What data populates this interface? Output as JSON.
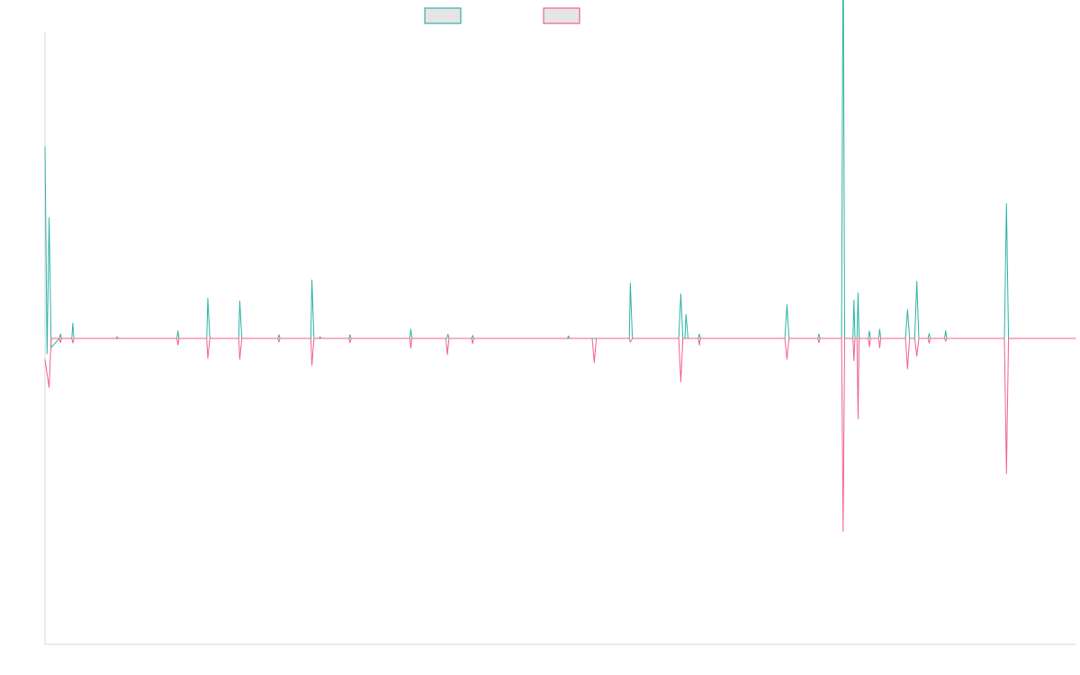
{
  "chart_data": {
    "type": "line",
    "grid": false,
    "legend_placement": "top-center",
    "x_range": [
      0,
      1000
    ],
    "y_range": [
      -100,
      100
    ],
    "series": [
      {
        "color": "#2bb3a5",
        "legend_fill": "#e5e5e5",
        "points": [
          [
            0.0,
            62.5
          ],
          [
            2.0,
            -5.0
          ],
          [
            4.0,
            39.4
          ],
          [
            6.0,
            -3.0
          ],
          [
            14.0,
            0.0
          ],
          [
            15.0,
            1.4
          ],
          [
            16.0,
            0.0
          ],
          [
            26.0,
            0.0
          ],
          [
            27.0,
            5.0
          ],
          [
            28.0,
            0.0
          ],
          [
            69.0,
            0.0
          ],
          [
            70.0,
            0.5
          ],
          [
            71.0,
            0.0
          ],
          [
            128.0,
            0.0
          ],
          [
            129.0,
            2.4
          ],
          [
            130.0,
            0.0
          ],
          [
            157.0,
            0.0
          ],
          [
            158.0,
            13.1
          ],
          [
            160.0,
            0.0
          ],
          [
            188.0,
            0.0
          ],
          [
            189.0,
            12.2
          ],
          [
            191.0,
            0.0
          ],
          [
            226.0,
            0.0
          ],
          [
            227.0,
            1.2
          ],
          [
            228.0,
            0.0
          ],
          [
            258.0,
            0.0
          ],
          [
            259.0,
            19.1
          ],
          [
            261.0,
            0.0
          ],
          [
            266.0,
            0.0
          ],
          [
            267.0,
            0.5
          ],
          [
            268.0,
            0.0
          ],
          [
            295.0,
            0.0
          ],
          [
            296.0,
            1.2
          ],
          [
            297.0,
            0.0
          ],
          [
            354.0,
            0.0
          ],
          [
            355.0,
            3.0
          ],
          [
            356.0,
            0.0
          ],
          [
            390.0,
            0.0
          ],
          [
            391.0,
            1.4
          ],
          [
            392.0,
            0.0
          ],
          [
            414.0,
            0.0
          ],
          [
            415.0,
            1.0
          ],
          [
            416.0,
            0.0
          ],
          [
            507.0,
            0.0
          ],
          [
            508.0,
            0.8
          ],
          [
            509.0,
            0.0
          ],
          [
            567.0,
            0.0
          ],
          [
            568.0,
            18.0
          ],
          [
            570.0,
            0.0
          ],
          [
            615.0,
            0.0
          ],
          [
            617.0,
            14.5
          ],
          [
            619.0,
            0.0
          ],
          [
            621.0,
            0.0
          ],
          [
            622.0,
            7.8
          ],
          [
            624.0,
            0.0
          ],
          [
            634.0,
            0.0
          ],
          [
            635.0,
            1.4
          ],
          [
            636.0,
            0.0
          ],
          [
            718.0,
            0.0
          ],
          [
            720.0,
            11.0
          ],
          [
            722.0,
            0.0
          ],
          [
            750.0,
            0.0
          ],
          [
            751.0,
            1.4
          ],
          [
            752.0,
            0.0
          ],
          [
            773.0,
            0.0
          ],
          [
            774.5,
            137.0
          ],
          [
            776.0,
            0.0
          ],
          [
            784.0,
            0.0
          ],
          [
            785.0,
            12.5
          ],
          [
            786.0,
            0.0
          ],
          [
            788.0,
            0.0
          ],
          [
            789.0,
            14.8
          ],
          [
            790.0,
            0.0
          ],
          [
            799.0,
            0.0
          ],
          [
            800.0,
            2.4
          ],
          [
            801.0,
            0.0
          ],
          [
            809.0,
            0.0
          ],
          [
            810.0,
            3.0
          ],
          [
            811.0,
            0.0
          ],
          [
            835.0,
            0.0
          ],
          [
            837.0,
            9.4
          ],
          [
            839.0,
            0.0
          ],
          [
            844.0,
            0.0
          ],
          [
            846.0,
            18.7
          ],
          [
            848.0,
            0.0
          ],
          [
            857.0,
            0.0
          ],
          [
            858.0,
            1.6
          ],
          [
            859.0,
            0.0
          ],
          [
            873.0,
            0.0
          ],
          [
            874.0,
            2.5
          ],
          [
            875.0,
            0.0
          ],
          [
            931.0,
            0.0
          ],
          [
            933.0,
            44.0
          ],
          [
            935.0,
            0.0
          ],
          [
            1000.0,
            0.0
          ]
        ]
      },
      {
        "color": "#f06289",
        "legend_fill": "#e5e5e5",
        "points": [
          [
            0.0,
            -7.0
          ],
          [
            4.0,
            -16.0
          ],
          [
            6.0,
            0.0
          ],
          [
            14.0,
            0.0
          ],
          [
            15.0,
            -1.4
          ],
          [
            16.0,
            0.0
          ],
          [
            26.0,
            0.0
          ],
          [
            27.0,
            -1.5
          ],
          [
            28.0,
            0.0
          ],
          [
            128.0,
            0.0
          ],
          [
            129.0,
            -2.2
          ],
          [
            130.0,
            0.0
          ],
          [
            157.0,
            0.0
          ],
          [
            158.0,
            -6.5
          ],
          [
            160.0,
            0.0
          ],
          [
            188.0,
            0.0
          ],
          [
            189.0,
            -6.8
          ],
          [
            191.0,
            0.0
          ],
          [
            226.0,
            0.0
          ],
          [
            227.0,
            -1.2
          ],
          [
            228.0,
            0.0
          ],
          [
            258.0,
            0.0
          ],
          [
            259.0,
            -8.8
          ],
          [
            261.0,
            0.0
          ],
          [
            295.0,
            0.0
          ],
          [
            296.0,
            -1.4
          ],
          [
            297.0,
            0.0
          ],
          [
            354.0,
            0.0
          ],
          [
            355.0,
            -3.2
          ],
          [
            356.0,
            0.0
          ],
          [
            389.0,
            0.0
          ],
          [
            390.5,
            -5.3
          ],
          [
            392.0,
            0.0
          ],
          [
            414.0,
            0.0
          ],
          [
            415.0,
            -1.7
          ],
          [
            416.0,
            0.0
          ],
          [
            531.0,
            0.0
          ],
          [
            533.0,
            -7.9
          ],
          [
            535.0,
            0.0
          ],
          [
            567.0,
            0.0
          ],
          [
            568.0,
            -1.2
          ],
          [
            570.0,
            0.0
          ],
          [
            615.0,
            0.0
          ],
          [
            617.0,
            -14.2
          ],
          [
            619.0,
            0.0
          ],
          [
            634.0,
            0.0
          ],
          [
            635.0,
            -2.2
          ],
          [
            636.0,
            0.0
          ],
          [
            718.0,
            0.0
          ],
          [
            720.0,
            -6.8
          ],
          [
            722.0,
            0.0
          ],
          [
            750.0,
            0.0
          ],
          [
            751.0,
            -1.4
          ],
          [
            752.0,
            0.0
          ],
          [
            773.0,
            0.0
          ],
          [
            774.5,
            -63.0
          ],
          [
            776.0,
            0.0
          ],
          [
            784.0,
            0.0
          ],
          [
            785.0,
            -7.3
          ],
          [
            786.0,
            0.0
          ],
          [
            788.0,
            0.0
          ],
          [
            789.0,
            -26.3
          ],
          [
            790.0,
            0.0
          ],
          [
            799.0,
            0.0
          ],
          [
            800.0,
            -2.8
          ],
          [
            801.0,
            0.0
          ],
          [
            809.0,
            0.0
          ],
          [
            810.0,
            -3.1
          ],
          [
            811.0,
            0.0
          ],
          [
            835.0,
            0.0
          ],
          [
            837.0,
            -10.0
          ],
          [
            839.0,
            0.0
          ],
          [
            844.0,
            0.0
          ],
          [
            846.0,
            -5.8
          ],
          [
            848.0,
            0.0
          ],
          [
            857.0,
            0.0
          ],
          [
            858.0,
            -1.6
          ],
          [
            859.0,
            0.0
          ],
          [
            873.0,
            0.0
          ],
          [
            874.0,
            -0.9
          ],
          [
            875.0,
            0.0
          ],
          [
            931.0,
            0.0
          ],
          [
            933.0,
            -44.2
          ],
          [
            935.0,
            0.0
          ],
          [
            1000.0,
            0.0
          ]
        ]
      }
    ]
  }
}
